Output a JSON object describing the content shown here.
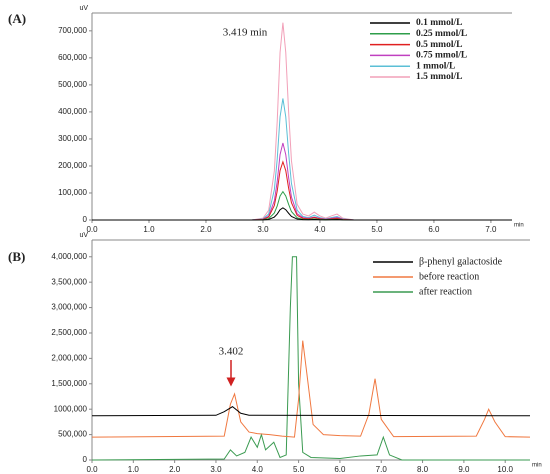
{
  "chart_data": [
    {
      "type": "line",
      "title": "(A)",
      "y_unit": "uV",
      "x_label": "min",
      "annotation": "3.419 min",
      "xlim": [
        0,
        7.37
      ],
      "ylim": [
        0,
        766000
      ],
      "xticks": [
        {
          "value": 0,
          "label": "0.0"
        },
        {
          "value": 1,
          "label": "1.0"
        },
        {
          "value": 2,
          "label": "2.0"
        },
        {
          "value": 3,
          "label": "3.0"
        },
        {
          "value": 4,
          "label": "4.0"
        },
        {
          "value": 5,
          "label": "5.0"
        },
        {
          "value": 6,
          "label": "6.0"
        },
        {
          "value": 7,
          "label": "7.0"
        }
      ],
      "yticks": [
        0,
        {
          "value": 100000,
          "label": "100,000"
        },
        {
          "value": 200000,
          "label": "200,000"
        },
        {
          "value": 300000,
          "label": "300,000"
        },
        {
          "value": 400000,
          "label": "400,000"
        },
        {
          "value": 500000,
          "label": "500,000"
        },
        {
          "value": 600000,
          "label": "600,000"
        },
        {
          "value": 700000,
          "label": "700,000"
        }
      ],
      "legend": "upper right",
      "x": [
        0,
        2.8,
        3.0,
        3.1,
        3.2,
        3.25,
        3.3,
        3.35,
        3.4,
        3.45,
        3.5,
        3.6,
        3.7,
        3.8,
        3.9,
        4.0,
        4.1,
        4.2,
        4.3,
        4.4,
        4.6,
        5.0,
        7.37
      ],
      "series": [
        {
          "name": "0.1 mmol/L",
          "color": "#000000",
          "values": [
            0,
            0,
            500,
            2000,
            11000,
            22000,
            38000,
            45000,
            38000,
            25000,
            13000,
            3500,
            1500,
            1000,
            2000,
            1000,
            500,
            1000,
            1500,
            500,
            0,
            0,
            0
          ]
        },
        {
          "name": "0.25 mmol/L",
          "color": "#2e9e4a",
          "values": [
            0,
            0,
            1000,
            5000,
            26000,
            52000,
            89000,
            105000,
            89000,
            58000,
            31000,
            8000,
            3000,
            2000,
            4000,
            2000,
            1000,
            2000,
            3000,
            1000,
            0,
            0,
            0
          ]
        },
        {
          "name": "0.5 mmol/L",
          "color": "#e02020",
          "values": [
            0,
            0,
            2000,
            11000,
            54000,
            107000,
            183000,
            215000,
            183000,
            118000,
            64000,
            17000,
            6000,
            4000,
            9000,
            4000,
            2000,
            4000,
            6000,
            2000,
            0,
            0,
            0
          ]
        },
        {
          "name": "0.75 mmol/L",
          "color": "#c040c0",
          "values": [
            0,
            0,
            3000,
            14000,
            71000,
            142000,
            242000,
            285000,
            242000,
            157000,
            85000,
            23000,
            9000,
            6000,
            11000,
            6000,
            3000,
            6000,
            9000,
            3000,
            0,
            0,
            0
          ]
        },
        {
          "name": "1 mmol/L",
          "color": "#5bbfd6",
          "values": [
            0,
            0,
            4000,
            22000,
            112000,
            225000,
            382000,
            450000,
            382000,
            247000,
            135000,
            36000,
            13000,
            9000,
            18000,
            9000,
            4000,
            9000,
            13000,
            4000,
            0,
            0,
            0
          ]
        },
        {
          "name": "1.5 mmol/L",
          "color": "#f2a0b8",
          "values": [
            0,
            0,
            7000,
            36000,
            182000,
            365000,
            620000,
            730000,
            620000,
            401000,
            219000,
            58000,
            22000,
            15000,
            29000,
            15000,
            7000,
            15000,
            22000,
            7000,
            0,
            0,
            0
          ]
        }
      ]
    },
    {
      "type": "line",
      "title": "(B)",
      "y_unit": "uV",
      "x_label": "min",
      "annotation": "3.402",
      "xlim": [
        0,
        10.6
      ],
      "ylim": [
        0,
        4330000
      ],
      "xticks": [
        {
          "value": 0,
          "label": "0.0"
        },
        {
          "value": 1,
          "label": "1.0"
        },
        {
          "value": 2,
          "label": "2.0"
        },
        {
          "value": 3,
          "label": "3.0"
        },
        {
          "value": 4,
          "label": "4.0"
        },
        {
          "value": 5,
          "label": "5.0"
        },
        {
          "value": 6,
          "label": "6.0"
        },
        {
          "value": 7,
          "label": "7.0"
        },
        {
          "value": 8,
          "label": "8.0"
        },
        {
          "value": 9,
          "label": "9.0"
        },
        {
          "value": 10,
          "label": "10.0"
        }
      ],
      "yticks": [
        0,
        {
          "value": 500000,
          "label": "500,000"
        },
        {
          "value": 1000000,
          "label": "1000,000"
        },
        {
          "value": 1500000,
          "label": "1,500,000"
        },
        {
          "value": 2000000,
          "label": "2,000,000"
        },
        {
          "value": 2500000,
          "label": "2,500,000"
        },
        {
          "value": 3000000,
          "label": "3,000,000"
        },
        {
          "value": 3500000,
          "label": "3,500,000"
        },
        {
          "value": 4000000,
          "label": "4,000,000"
        }
      ],
      "legend": "upper right",
      "series": [
        {
          "name": "β-phenyl galactoside",
          "color": "#000000",
          "x": [
            0,
            3.0,
            3.2,
            3.4,
            3.6,
            3.8,
            10.6
          ],
          "values": [
            870000,
            880000,
            950000,
            1050000,
            920000,
            880000,
            870000
          ]
        },
        {
          "name": "before reaction",
          "color": "#f07840",
          "x": [
            0,
            3.2,
            3.35,
            3.45,
            3.6,
            3.8,
            4.0,
            4.3,
            4.6,
            4.9,
            5.0,
            5.1,
            5.2,
            5.35,
            5.6,
            6.0,
            6.5,
            6.7,
            6.85,
            7.0,
            7.3,
            9.3,
            9.5,
            9.6,
            9.75,
            10.0,
            10.6
          ],
          "values": [
            450000,
            470000,
            1100000,
            1300000,
            750000,
            550000,
            520000,
            500000,
            470000,
            450000,
            1200000,
            2350000,
            1700000,
            700000,
            500000,
            480000,
            470000,
            900000,
            1600000,
            800000,
            460000,
            470000,
            800000,
            1000000,
            750000,
            460000,
            450000
          ]
        },
        {
          "name": "after reaction",
          "color": "#3a9a50",
          "x": [
            0,
            3.2,
            3.35,
            3.5,
            3.7,
            3.85,
            4.0,
            4.1,
            4.2,
            4.4,
            4.55,
            4.7,
            4.8,
            4.85,
            4.95,
            5.0,
            5.1,
            5.3,
            6.0,
            6.5,
            6.9,
            7.05,
            7.2,
            7.5,
            10.6
          ],
          "values": [
            0,
            20000,
            200000,
            80000,
            150000,
            450000,
            250000,
            500000,
            200000,
            350000,
            50000,
            100000,
            3000000,
            4000000,
            4000000,
            1500000,
            150000,
            50000,
            30000,
            80000,
            100000,
            450000,
            100000,
            0,
            0
          ]
        }
      ]
    }
  ]
}
